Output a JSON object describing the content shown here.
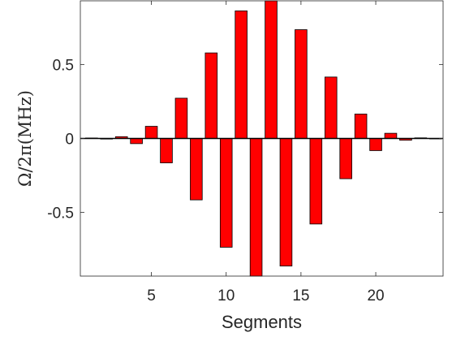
{
  "chart_data": {
    "type": "bar",
    "xlabel": "Segments",
    "ylabel": "Ω/2π(MHz)",
    "x": [
      1,
      2,
      3,
      4,
      5,
      6,
      7,
      8,
      9,
      10,
      11,
      12,
      13,
      14,
      15,
      16,
      17,
      18,
      19,
      20,
      21,
      22,
      23,
      24
    ],
    "values": [
      0.003,
      -0.004,
      0.012,
      -0.035,
      0.082,
      -0.165,
      0.272,
      -0.415,
      0.578,
      -0.735,
      0.862,
      -0.93,
      0.93,
      -0.862,
      0.735,
      -0.578,
      0.415,
      -0.272,
      0.165,
      -0.082,
      0.035,
      -0.012,
      0.004,
      -0.003
    ],
    "xlim": [
      0.25,
      24.5
    ],
    "ylim": [
      -0.93,
      0.93
    ],
    "xticks": [
      5,
      10,
      15,
      20
    ],
    "xtick_labels": [
      "5",
      "10",
      "15",
      "20"
    ],
    "yticks": [
      -0.5,
      0,
      0.5
    ],
    "ytick_labels": [
      "-0.5",
      "0",
      "0.5"
    ],
    "bar_color": "#ff0000",
    "bar_edge_color": "#000000",
    "grid": false
  }
}
